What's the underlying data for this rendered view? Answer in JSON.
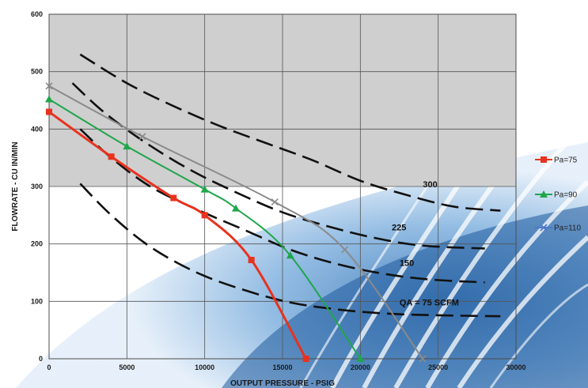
{
  "chart_data": {
    "type": "line",
    "xlabel": "OUTPUT PRESSURE - PSIG",
    "ylabel": "FLOWRATE - CU IN/MIN",
    "xlim": [
      0,
      30000
    ],
    "ylim": [
      0,
      600
    ],
    "x_ticks": [
      "0",
      "5000",
      "10000",
      "15000",
      "20000",
      "25000",
      "30000"
    ],
    "y_ticks": [
      "0",
      "100",
      "200",
      "300",
      "400",
      "500",
      "600"
    ],
    "shaded_region": {
      "y_from": 300,
      "y_to": 600,
      "color": "#cfcfcf"
    },
    "grid": true,
    "legend_position": "right",
    "series": [
      {
        "name": "Pa=75",
        "color": "#e8321e",
        "marker": "square",
        "x": [
          0,
          4000,
          8000,
          10000,
          13000,
          16500
        ],
        "y": [
          430,
          352,
          280,
          250,
          172,
          0
        ]
      },
      {
        "name": "Pa=90",
        "color": "#1fa64a",
        "marker": "triangle",
        "x": [
          0,
          5000,
          10000,
          12000,
          15500,
          20000
        ],
        "y": [
          452,
          370,
          295,
          262,
          180,
          0
        ]
      },
      {
        "name": "Pa=110",
        "color": "#8a8a8a",
        "legend_color": "#4d79c8",
        "marker": "x",
        "x": [
          0,
          6000,
          14500,
          19000,
          24000
        ],
        "y": [
          475,
          387,
          273,
          190,
          0
        ]
      }
    ],
    "scfm_curves": [
      {
        "label": "300",
        "x": [
          2000,
          5000,
          8000,
          11000,
          14000,
          17000,
          20000,
          23000,
          26000,
          29000
        ],
        "y": [
          530,
          480,
          440,
          405,
          375,
          345,
          310,
          285,
          265,
          258
        ]
      },
      {
        "label": "225",
        "x": [
          1500,
          3500,
          6000,
          9000,
          12000,
          15000,
          18000,
          21000,
          24000,
          28000
        ],
        "y": [
          480,
          430,
          380,
          330,
          290,
          255,
          230,
          210,
          197,
          192
        ]
      },
      {
        "label": "150",
        "x": [
          2000,
          4000,
          6500,
          9500,
          12500,
          15500,
          18500,
          21500,
          24500,
          28000
        ],
        "y": [
          400,
          350,
          300,
          260,
          225,
          190,
          165,
          148,
          138,
          133
        ]
      },
      {
        "label": "QA = 75 SCFM",
        "x": [
          2000,
          4000,
          6500,
          9500,
          12500,
          15500,
          18500,
          21500,
          24500,
          29000
        ],
        "y": [
          305,
          250,
          195,
          150,
          120,
          98,
          86,
          79,
          76,
          74
        ]
      }
    ]
  },
  "theme": {
    "shade_color": "#cfcfcf",
    "grid_color": "#555555",
    "dash_color": "#111111"
  }
}
